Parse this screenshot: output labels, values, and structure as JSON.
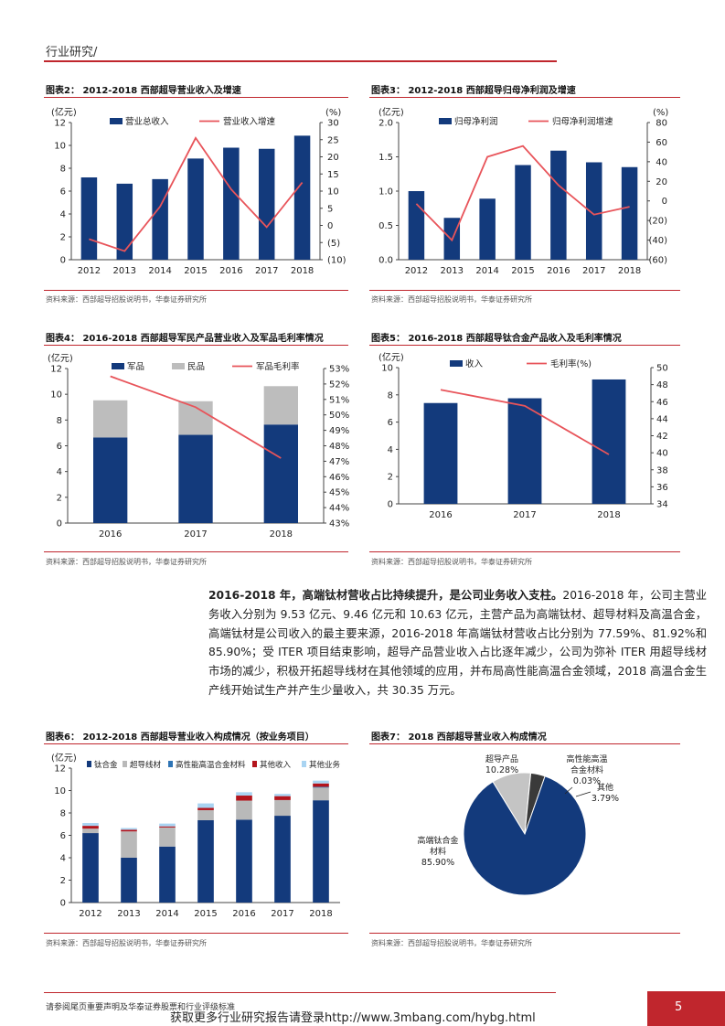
{
  "header": {
    "section": "行业研究/"
  },
  "footer": {
    "disclaimer": "请参阅尾页重要声明及华泰证券股票和行业评级标准",
    "promo": "获取更多行业研究报告请登录http://www.3mbang.com/hybg.html",
    "page_number": "5"
  },
  "colors": {
    "navy": "#133a7c",
    "red": "#e8545a",
    "gray": "#bdbdbd",
    "brand": "#c0262d"
  },
  "paragraph": {
    "lead": "2016-2018 年，高端钛材营收占比持续提升，是公司业务收入支柱。",
    "body": "2016-2018 年，公司主营业务收入分别为 9.53 亿元、9.46 亿元和 10.63 亿元，主营产品为高端钛材、超导材料及高温合金，高端钛材是公司收入的最主要来源，2016-2018 年高端钛材营收占比分别为 77.59%、81.92%和 85.90%；受 ITER 项目结束影响，超导产品营业收入占比逐年减少，公司为弥补 ITER 用超导线材市场的减少，积极开拓超导线材在其他领域的应用，并布局高性能高温合金领域，2018 高温合金生产线开始试生产并产生少量收入，共 30.35 万元。"
  },
  "chart_data": [
    {
      "id": "fig2",
      "type": "bar+line",
      "title": "图表2：  2012-2018 西部超导营业收入及增速",
      "source": "资料来源：西部超导招股说明书，华泰证券研究所",
      "left_unit": "(亿元)",
      "right_unit": "(%)",
      "categories": [
        "2012",
        "2013",
        "2014",
        "2015",
        "2016",
        "2017",
        "2018"
      ],
      "bar_series": {
        "name": "营业总收入",
        "values": [
          7.2,
          6.65,
          7.05,
          8.85,
          9.8,
          9.7,
          10.85
        ]
      },
      "line_series": {
        "name": "营业收入增速",
        "values": [
          -4,
          -7.5,
          5.5,
          25.5,
          10.5,
          -0.5,
          12.5
        ]
      },
      "left_axis": {
        "min": 0,
        "max": 12,
        "step": 2,
        "labels": [
          "0",
          "2",
          "4",
          "6",
          "8",
          "10",
          "12"
        ]
      },
      "right_axis": {
        "min": -10,
        "max": 30,
        "step": 5,
        "labels": [
          "(10)",
          "(5)",
          "0",
          "5",
          "10",
          "15",
          "20",
          "25",
          "30"
        ]
      }
    },
    {
      "id": "fig3",
      "type": "bar+line",
      "title": "图表3：  2012-2018 西部超导归母净利润及增速",
      "source": "资料来源：西部超导招股说明书，华泰证券研究所",
      "left_unit": "(亿元)",
      "right_unit": "(%)",
      "categories": [
        "2012",
        "2013",
        "2014",
        "2015",
        "2016",
        "2017",
        "2018"
      ],
      "bar_series": {
        "name": "归母净利润",
        "values": [
          1.0,
          0.61,
          0.89,
          1.38,
          1.59,
          1.42,
          1.35
        ]
      },
      "line_series": {
        "name": "归母净利润增速",
        "values": [
          -3,
          -40,
          45,
          56,
          16,
          -14,
          -6
        ]
      },
      "left_axis": {
        "min": 0,
        "max": 2,
        "step": 0.5,
        "labels": [
          "0.0",
          "0.5",
          "1.0",
          "1.5",
          "2.0"
        ]
      },
      "right_axis": {
        "min": -60,
        "max": 80,
        "step": 20,
        "labels": [
          "(60)",
          "(40)",
          "(20)",
          "0",
          "20",
          "40",
          "60",
          "80"
        ]
      }
    },
    {
      "id": "fig4",
      "type": "stacked-bar+line",
      "title": "图表4：  2016-2018 西部超导军民产品营业收入及军品毛利率情况",
      "source": "资料来源：西部超导招股说明书，华泰证券研究所",
      "left_unit": "(亿元)",
      "categories": [
        "2016",
        "2017",
        "2018"
      ],
      "stack_series": [
        {
          "name": "军品",
          "values": [
            6.65,
            6.85,
            7.65
          ]
        },
        {
          "name": "民品",
          "values": [
            2.88,
            2.61,
            2.98
          ]
        }
      ],
      "line_series": {
        "name": "军品毛利率",
        "values": [
          52.5,
          50.5,
          47.2
        ]
      },
      "left_axis": {
        "min": 0,
        "max": 12,
        "step": 2,
        "labels": [
          "0",
          "2",
          "4",
          "6",
          "8",
          "10",
          "12"
        ]
      },
      "right_axis": {
        "min": 43,
        "max": 53,
        "step": 1,
        "labels": [
          "43%",
          "44%",
          "45%",
          "46%",
          "47%",
          "48%",
          "49%",
          "50%",
          "51%",
          "52%",
          "53%"
        ]
      }
    },
    {
      "id": "fig5",
      "type": "bar+line",
      "title": "图表5：  2016-2018 西部超导钛合金产品收入及毛利率情况",
      "source": "资料来源：西部超导招股说明书，华泰证券研究所",
      "left_unit": "(亿元)",
      "categories": [
        "2016",
        "2017",
        "2018"
      ],
      "bar_series": {
        "name": "收入",
        "values": [
          7.4,
          7.75,
          9.13
        ]
      },
      "line_series": {
        "name": "毛利率(%)",
        "values": [
          47.4,
          45.5,
          39.8
        ]
      },
      "left_axis": {
        "min": 0,
        "max": 10,
        "step": 2,
        "labels": [
          "0",
          "2",
          "4",
          "6",
          "8",
          "10"
        ]
      },
      "right_axis": {
        "min": 34,
        "max": 50,
        "step": 2,
        "labels": [
          "34",
          "36",
          "38",
          "40",
          "42",
          "44",
          "46",
          "48",
          "50"
        ]
      }
    },
    {
      "id": "fig6",
      "type": "stacked-bar",
      "title": "图表6：  2012-2018 西部超导营业收入构成情况（按业务项目）",
      "source": "资料来源：西部超导招股说明书，华泰证券研究所",
      "left_unit": "(亿元)",
      "categories": [
        "2012",
        "2013",
        "2014",
        "2015",
        "2016",
        "2017",
        "2018"
      ],
      "stack_series": [
        {
          "name": "钛合金",
          "values": [
            6.2,
            4.0,
            5.0,
            7.35,
            7.4,
            7.75,
            9.13
          ]
        },
        {
          "name": "超导线材",
          "values": [
            0.4,
            2.35,
            1.7,
            0.9,
            1.7,
            1.4,
            1.2
          ]
        },
        {
          "name": "高性能高温合金材料",
          "values": [
            0,
            0,
            0,
            0,
            0,
            0,
            0.003
          ]
        },
        {
          "name": "其他收入",
          "values": [
            0.25,
            0.15,
            0.1,
            0.2,
            0.45,
            0.35,
            0.3
          ]
        },
        {
          "name": "其他业务",
          "values": [
            0.25,
            0.15,
            0.25,
            0.4,
            0.3,
            0.2,
            0.25
          ]
        }
      ],
      "left_axis": {
        "min": 0,
        "max": 12,
        "step": 2,
        "labels": [
          "0",
          "2",
          "4",
          "6",
          "8",
          "10",
          "12"
        ]
      }
    },
    {
      "id": "fig7",
      "type": "pie",
      "title": "图表7：  2018 西部超导营业收入构成情况",
      "source": "资料来源：西部超导招股说明书，华泰证券研究所",
      "slices": [
        {
          "name": "高端钛合金材料",
          "value": 85.9,
          "label": "85.90%"
        },
        {
          "name": "超导产品",
          "value": 10.28,
          "label": "10.28%"
        },
        {
          "name": "高性能高温合金材料",
          "value": 0.03,
          "label": "0.03%"
        },
        {
          "name": "其他",
          "value": 3.79,
          "label": "3.79%"
        }
      ],
      "slice_label_lines": {
        "高端钛合金材料": [
          "高端钛合金",
          "材料"
        ],
        "超导产品": [
          "超导产品"
        ],
        "高性能高温合金材料": [
          "高性能高温",
          "合金材料"
        ],
        "其他": [
          "其他"
        ]
      }
    }
  ]
}
